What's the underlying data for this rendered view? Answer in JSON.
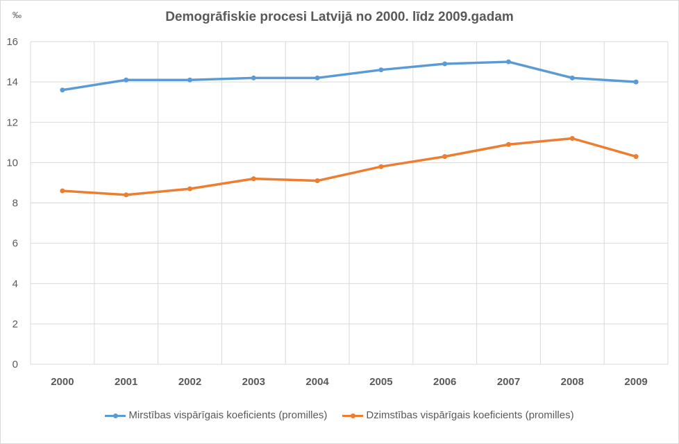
{
  "chart_data": {
    "type": "line",
    "title": "Demogrāfiskie procesi Latvijā no 2000. līdz 2009.gadam",
    "ylabel": "‰",
    "xlabel": "",
    "categories": [
      "2000",
      "2001",
      "2002",
      "2003",
      "2004",
      "2005",
      "2006",
      "2007",
      "2008",
      "2009"
    ],
    "ylim": [
      0,
      16
    ],
    "yticks": [
      0,
      2,
      4,
      6,
      8,
      10,
      12,
      14,
      16
    ],
    "grid": true,
    "legend_position": "bottom",
    "series": [
      {
        "name": "Mirstības vispārīgais koeficients (promilles)",
        "color": "#5b9bd5",
        "values": [
          13.6,
          14.1,
          14.1,
          14.2,
          14.2,
          14.6,
          14.9,
          15.0,
          14.2,
          14.0
        ]
      },
      {
        "name": "Dzimstības vispārīgais koeficients (promilles)",
        "color": "#ed7d31",
        "values": [
          8.6,
          8.4,
          8.7,
          9.2,
          9.1,
          9.8,
          10.3,
          10.9,
          11.2,
          10.3
        ]
      }
    ]
  }
}
